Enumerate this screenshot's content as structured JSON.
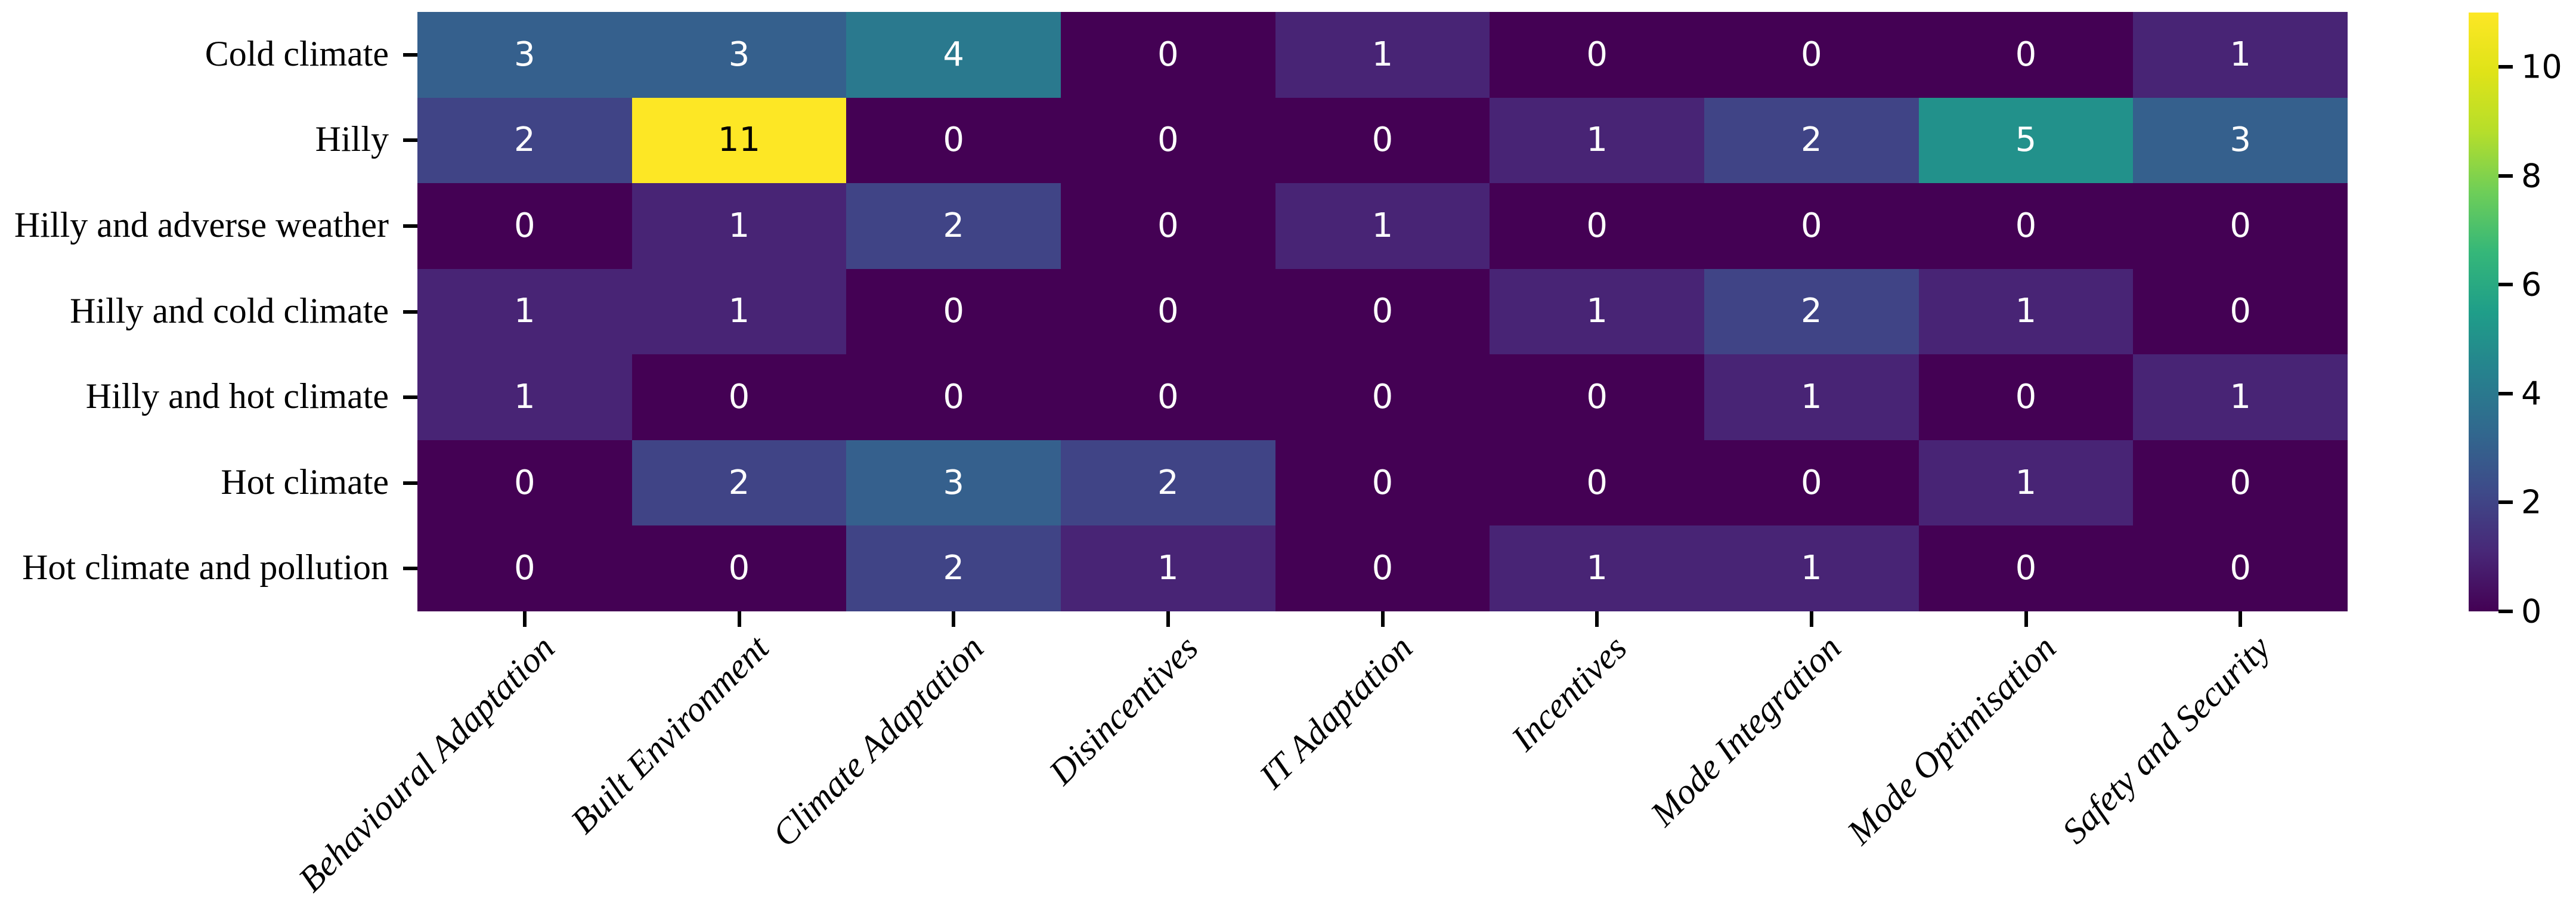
{
  "figure": {
    "background": "#ffffff",
    "tick_color": "#000000",
    "label_color": "#000000"
  },
  "chart_data": {
    "type": "heatmap",
    "title": "",
    "xlabel": "",
    "ylabel": "",
    "rows": [
      "Cold climate",
      "Hilly",
      "Hilly and adverse weather",
      "Hilly and cold climate",
      "Hilly and hot climate",
      "Hot climate",
      "Hot climate and pollution"
    ],
    "columns": [
      "Behavioural Adaptation",
      "Built Environment",
      "Climate Adaptation",
      "Disincentives",
      "IT Adaptation",
      "Incentives",
      "Mode Integration",
      "Mode Optimisation",
      "Safety and Security"
    ],
    "values": [
      [
        3,
        3,
        4,
        0,
        1,
        0,
        0,
        0,
        1
      ],
      [
        2,
        11,
        0,
        0,
        0,
        1,
        2,
        5,
        3
      ],
      [
        0,
        1,
        2,
        0,
        1,
        0,
        0,
        0,
        0
      ],
      [
        1,
        1,
        0,
        0,
        0,
        1,
        2,
        1,
        0
      ],
      [
        1,
        0,
        0,
        0,
        0,
        0,
        1,
        0,
        1
      ],
      [
        0,
        2,
        3,
        2,
        0,
        0,
        0,
        1,
        0
      ],
      [
        0,
        0,
        2,
        1,
        0,
        1,
        1,
        0,
        0
      ]
    ],
    "vmin": 0,
    "vmax": 11,
    "colormap": "viridis",
    "colorbar_ticks": [
      0,
      2,
      4,
      6,
      8,
      10
    ],
    "legend_position": "right",
    "grid": false,
    "annotated": true
  },
  "viridis_stops": [
    "#440154",
    "#482878",
    "#3e4a89",
    "#31688e",
    "#26828e",
    "#1f9e89",
    "#35b779",
    "#6ece58",
    "#b5de2b",
    "#dfe318",
    "#fde725"
  ]
}
